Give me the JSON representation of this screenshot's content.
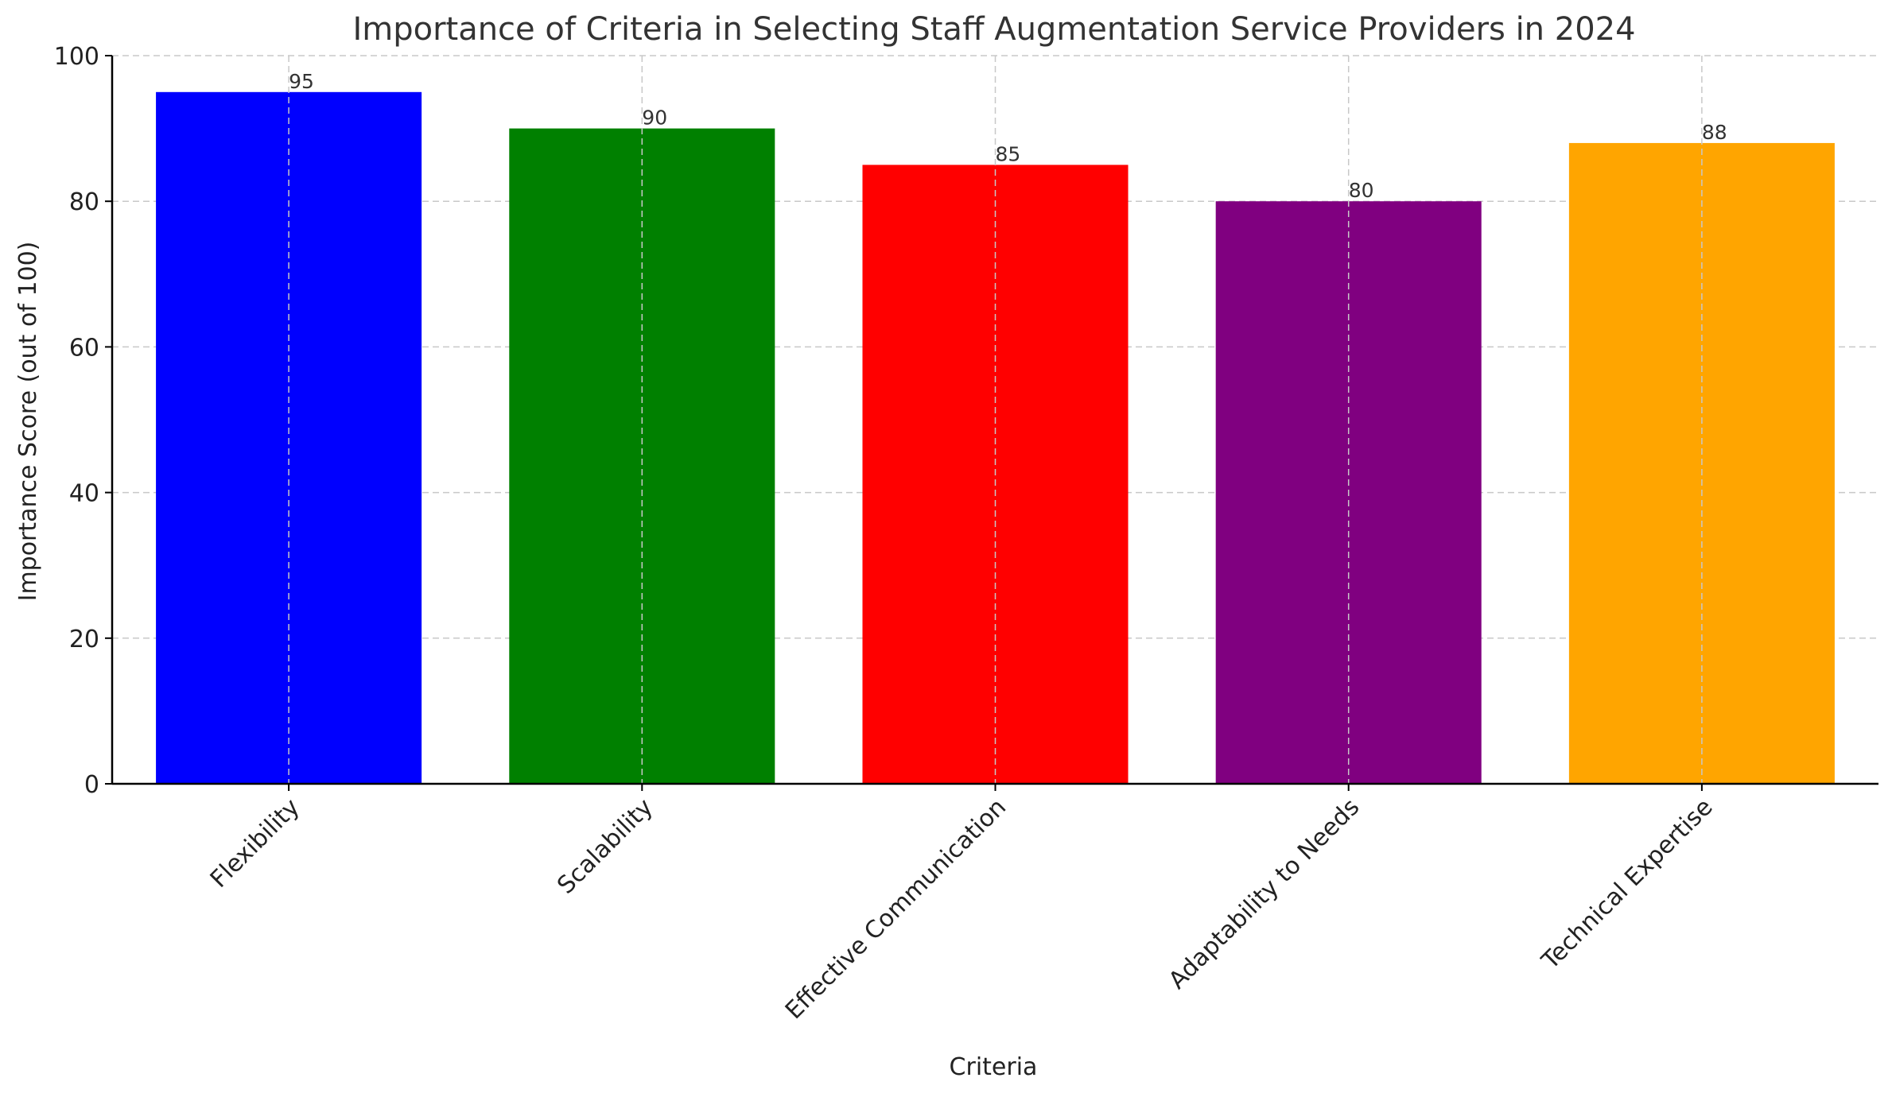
{
  "chart_data": {
    "type": "bar",
    "title": "Importance of Criteria in Selecting Staff Augmentation Service Providers in 2024",
    "xlabel": "Criteria",
    "ylabel": "Importance Score (out of 100)",
    "categories": [
      "Flexibility",
      "Scalability",
      "Effective Communication",
      "Adaptability to Needs",
      "Technical Expertise"
    ],
    "values": [
      95,
      90,
      85,
      80,
      88
    ],
    "colors": [
      "#0000ff",
      "#008000",
      "#ff0000",
      "#800080",
      "#ffa500"
    ],
    "ylim": [
      0,
      100
    ],
    "yticks": [
      "0",
      "20",
      "40",
      "60",
      "80",
      "100"
    ],
    "grid": true,
    "data_labels": true
  }
}
